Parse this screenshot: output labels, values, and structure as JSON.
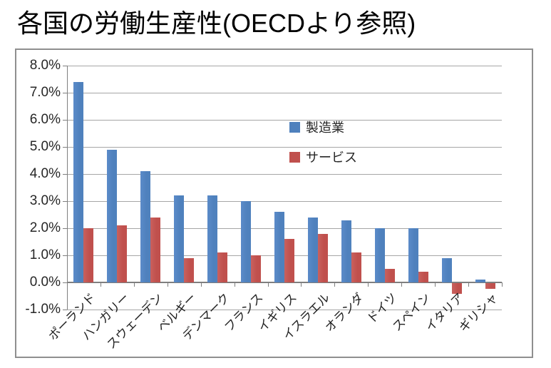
{
  "title": "各国の労働生産性(OECDより参照)",
  "legend": {
    "items": [
      {
        "label": "製造業",
        "color": "#4F81BD"
      },
      {
        "label": "サービス",
        "color": "#C0504D"
      }
    ]
  },
  "chart_data": {
    "type": "bar",
    "title": "各国の労働生産性(OECDより参照)",
    "categories": [
      "ポーランド",
      "ハンガリー",
      "スウェーデン",
      "ベルギー",
      "デンマーク",
      "フランス",
      "イギリス",
      "イスラエル",
      "オランダ",
      "ドイツ",
      "スペイン",
      "イタリア",
      "ギリシャ"
    ],
    "series": [
      {
        "name": "製造業",
        "color": "#4F81BD",
        "values": [
          7.4,
          4.9,
          4.1,
          3.2,
          3.2,
          3.0,
          2.6,
          2.4,
          2.3,
          2.0,
          2.0,
          0.9,
          0.1
        ]
      },
      {
        "name": "サービス",
        "color": "#C0504D",
        "values": [
          2.0,
          2.1,
          2.4,
          0.9,
          1.1,
          1.0,
          1.6,
          1.8,
          1.1,
          0.5,
          0.4,
          -0.4,
          -0.2
        ]
      }
    ],
    "xlabel": "",
    "ylabel": "",
    "ylim": [
      -1.0,
      8.0
    ],
    "ytick_step": 1.0,
    "ytick_labels": [
      "8.0%",
      "7.0%",
      "6.0%",
      "5.0%",
      "4.0%",
      "3.0%",
      "2.0%",
      "1.0%",
      "0.0%",
      "-1.0%"
    ],
    "grid": true,
    "legend_position": "center-right",
    "bar_label_rotation_deg": 45
  }
}
